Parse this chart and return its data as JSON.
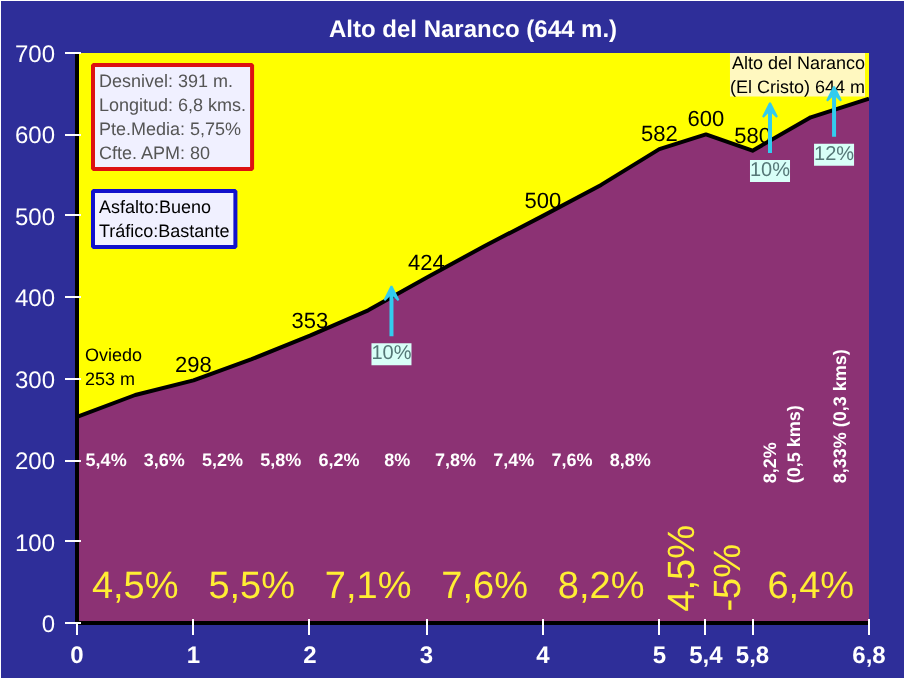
{
  "chart_data": {
    "type": "area",
    "title": "Alto del Naranco (644 m.)",
    "x": [
      0,
      0.5,
      1,
      1.5,
      2,
      2.5,
      3,
      3.5,
      4,
      4.5,
      5,
      5.4,
      5.8,
      6.3,
      6.8
    ],
    "series": [
      {
        "color": "#8c3274",
        "values": [
          253,
          280,
          298,
          324,
          353,
          384,
          424,
          463,
          500,
          538,
          582,
          600,
          580,
          621,
          644
        ]
      }
    ],
    "xlim": [
      0,
      6.8
    ],
    "ylim": [
      0,
      700
    ],
    "xticks": [
      0,
      1,
      2,
      3,
      4,
      5,
      {
        "value": 5.4,
        "label": "5,4"
      },
      {
        "value": 5.8,
        "label": "5,8"
      },
      {
        "value": 6.8,
        "label": "6,8"
      }
    ],
    "yticks": [
      0,
      100,
      200,
      300,
      400,
      500,
      600,
      700
    ],
    "annotations": [
      "Desnivel: 391 m.\nLongitud: 6,8 kms.\nPte.Media: 5,75%\nCfte. APM: 80",
      "Asfalto:Bueno\nTráfico:Bastante",
      {
        "text": "Oviedo\n253 m",
        "x": 0,
        "y": 253
      },
      {
        "text": "Alto del Naranco\n(El Cristo) 644 m",
        "x": 6.8,
        "y": 644
      },
      {
        "text": "298",
        "x": 1,
        "y": 298
      },
      {
        "text": "353",
        "x": 2,
        "y": 353
      },
      {
        "text": "424",
        "x": 3,
        "y": 424
      },
      {
        "text": "500",
        "x": 4,
        "y": 500
      },
      {
        "text": "582",
        "x": 5,
        "y": 582
      },
      {
        "text": "600",
        "x": 5.4,
        "y": 600
      },
      {
        "text": "580",
        "x": 5.8,
        "y": 580
      },
      {
        "text": "10%",
        "x": 2.7,
        "y": 330
      },
      {
        "text": "10%",
        "x": 5.95,
        "y": 555
      },
      {
        "text": "12%",
        "x": 6.5,
        "y": 575
      },
      "5,4%",
      "3,6%",
      "5,2%",
      "5,8%",
      "6,2%",
      "8%",
      "7,8%",
      "7,4%",
      "7,6%",
      "8,8%",
      "8,2%\n(0,5 kms)",
      "8,33% (0,3 kms)",
      "4,5%",
      "5,5%",
      "7,1%",
      "7,6%",
      "8,2%",
      "4,5%",
      "-5%",
      "6,4%"
    ]
  }
}
